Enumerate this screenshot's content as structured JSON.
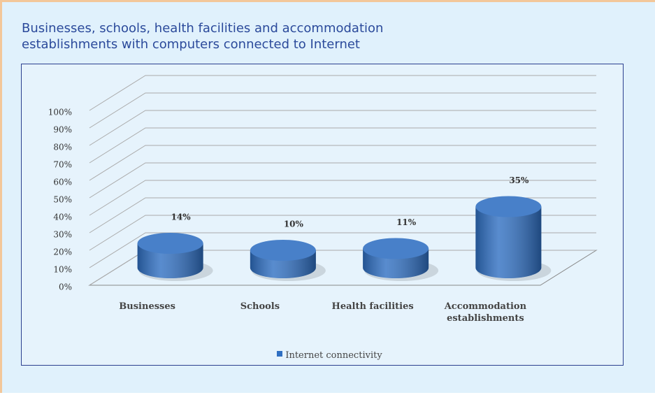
{
  "chart_data": {
    "type": "bar",
    "title": "Businesses, schools, health facilities and accommodation establishments with computers connected to Internet",
    "categories": [
      "Businesses",
      "Schools",
      "Health facilities",
      "Accommodation establishments"
    ],
    "series": [
      {
        "name": "Internet connectivity",
        "color": "#2f6fc2",
        "values": [
          14,
          10,
          11,
          35
        ],
        "value_labels": [
          "14%",
          "10%",
          "11%",
          "35%"
        ]
      }
    ],
    "ylim": [
      0,
      100
    ],
    "yticks": [
      {
        "value": 0,
        "label": "0%"
      },
      {
        "value": 10,
        "label": "10%"
      },
      {
        "value": 20,
        "label": "20%"
      },
      {
        "value": 30,
        "label": "30%"
      },
      {
        "value": 40,
        "label": "40%"
      },
      {
        "value": 50,
        "label": "50%"
      },
      {
        "value": 60,
        "label": "60%"
      },
      {
        "value": 70,
        "label": "70%"
      },
      {
        "value": 80,
        "label": "80%"
      },
      {
        "value": 90,
        "label": "90%"
      },
      {
        "value": 100,
        "label": "100%"
      }
    ],
    "grid": true,
    "legend": "bottom"
  }
}
